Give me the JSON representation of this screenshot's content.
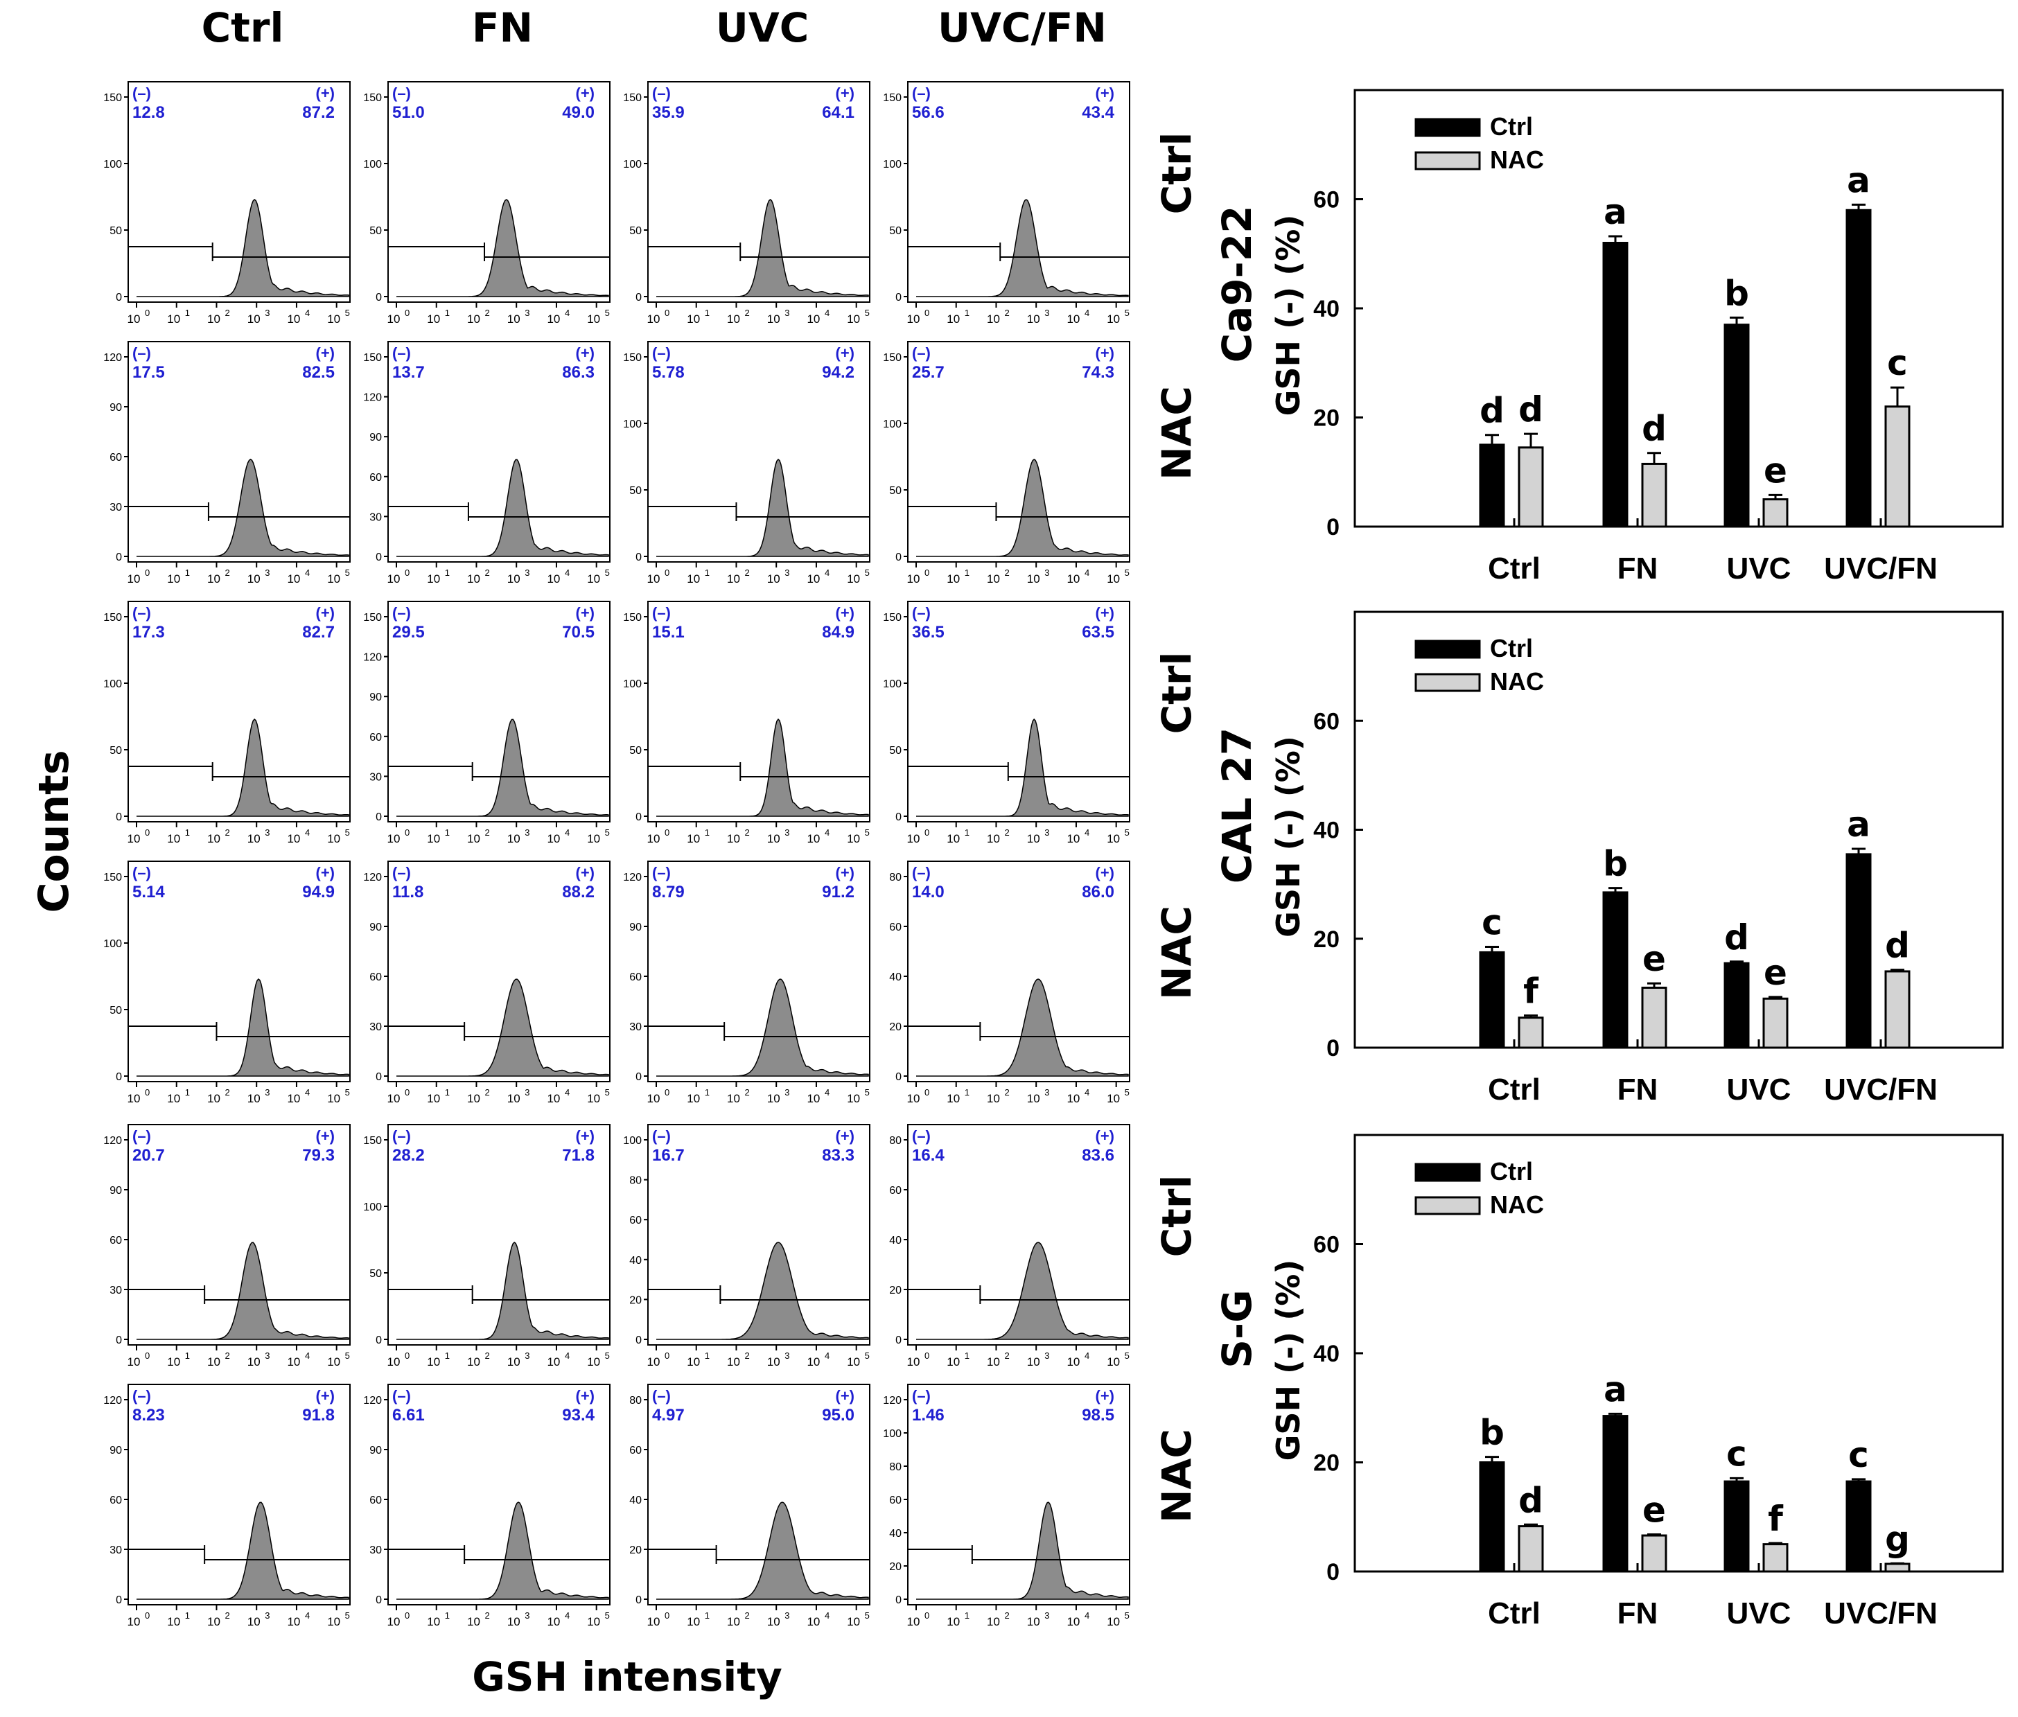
{
  "figure": {
    "column_headers": [
      "Ctrl",
      "FN",
      "UVC",
      "UVC/FN"
    ],
    "row_labels": [
      "Ctrl",
      "NAC",
      "Ctrl",
      "NAC",
      "Ctrl",
      "NAC"
    ],
    "y_axis_label": "Counts",
    "x_axis_label": "GSH intensity",
    "gate_labels": {
      "negative": "(–)",
      "positive": "(+)"
    },
    "x_tick_labels": [
      "10",
      "0",
      "10",
      "1",
      "10",
      "2",
      "10",
      "3",
      "10",
      "4",
      "10",
      "5"
    ],
    "y_ticks_sets": {
      "A": [
        "0",
        "50",
        "100",
        "150"
      ],
      "B": [
        "0",
        "30",
        "60",
        "90",
        "120"
      ],
      "C": [
        "0",
        "30",
        "60",
        "90",
        "120",
        "150"
      ],
      "D": [
        "0",
        "20",
        "40",
        "60",
        "80",
        "100"
      ],
      "E": [
        "0",
        "20",
        "40",
        "60",
        "80"
      ],
      "F": [
        "0",
        "20",
        "40",
        "60",
        "80",
        "100",
        "120"
      ]
    },
    "colors": {
      "fill": "#8c8c8c",
      "gate_text": "#1f1fd1",
      "ctrl_bar": "#000000",
      "nac_bar": "#d3d3d3"
    }
  },
  "histograms": [
    [
      {
        "neg": "12.8",
        "pos": "87.2",
        "y": "A",
        "peak": 2.95,
        "w": 0.22,
        "gate": 1.9
      },
      {
        "neg": "51.0",
        "pos": "49.0",
        "y": "A",
        "peak": 2.75,
        "w": 0.24,
        "gate": 2.2
      },
      {
        "neg": "35.9",
        "pos": "64.1",
        "y": "A",
        "peak": 2.85,
        "w": 0.22,
        "gate": 2.1
      },
      {
        "neg": "56.6",
        "pos": "43.4",
        "y": "A",
        "peak": 2.75,
        "w": 0.24,
        "gate": 2.1
      }
    ],
    [
      {
        "neg": "17.5",
        "pos": "82.5",
        "y": "B",
        "peak": 2.85,
        "w": 0.25,
        "gate": 1.8
      },
      {
        "neg": "13.7",
        "pos": "86.3",
        "y": "C",
        "peak": 3.0,
        "w": 0.22,
        "gate": 1.8
      },
      {
        "neg": "5.78",
        "pos": "94.2",
        "y": "A",
        "peak": 3.05,
        "w": 0.2,
        "gate": 2.0
      },
      {
        "neg": "25.7",
        "pos": "74.3",
        "y": "A",
        "peak": 2.95,
        "w": 0.24,
        "gate": 2.0
      }
    ],
    [
      {
        "neg": "17.3",
        "pos": "82.7",
        "y": "A",
        "peak": 2.95,
        "w": 0.2,
        "gate": 1.9
      },
      {
        "neg": "29.5",
        "pos": "70.5",
        "y": "C",
        "peak": 2.9,
        "w": 0.22,
        "gate": 1.9
      },
      {
        "neg": "15.1",
        "pos": "84.9",
        "y": "A",
        "peak": 3.05,
        "w": 0.18,
        "gate": 2.1
      },
      {
        "neg": "36.5",
        "pos": "63.5",
        "y": "A",
        "peak": 2.95,
        "w": 0.18,
        "gate": 2.3
      }
    ],
    [
      {
        "neg": "5.14",
        "pos": "94.9",
        "y": "A",
        "peak": 3.05,
        "w": 0.2,
        "gate": 2.0
      },
      {
        "neg": "11.8",
        "pos": "88.2",
        "y": "B",
        "peak": 3.0,
        "w": 0.3,
        "gate": 1.7
      },
      {
        "neg": "8.79",
        "pos": "91.2",
        "y": "B",
        "peak": 3.1,
        "w": 0.3,
        "gate": 1.7
      },
      {
        "neg": "14.0",
        "pos": "86.0",
        "y": "E",
        "peak": 3.05,
        "w": 0.32,
        "gate": 1.6
      }
    ],
    [
      {
        "neg": "20.7",
        "pos": "79.3",
        "y": "B",
        "peak": 2.9,
        "w": 0.26,
        "gate": 1.7
      },
      {
        "neg": "28.2",
        "pos": "71.8",
        "y": "A",
        "peak": 2.95,
        "w": 0.22,
        "gate": 1.9
      },
      {
        "neg": "16.7",
        "pos": "83.3",
        "y": "D",
        "peak": 3.05,
        "w": 0.35,
        "gate": 1.6
      },
      {
        "neg": "16.4",
        "pos": "83.6",
        "y": "E",
        "peak": 3.05,
        "w": 0.34,
        "gate": 1.6
      }
    ],
    [
      {
        "neg": "8.23",
        "pos": "91.8",
        "y": "B",
        "peak": 3.1,
        "w": 0.25,
        "gate": 1.7
      },
      {
        "neg": "6.61",
        "pos": "93.4",
        "y": "B",
        "peak": 3.05,
        "w": 0.25,
        "gate": 1.7
      },
      {
        "neg": "4.97",
        "pos": "95.0",
        "y": "E",
        "peak": 3.15,
        "w": 0.32,
        "gate": 1.5
      },
      {
        "neg": "1.46",
        "pos": "98.5",
        "y": "F",
        "peak": 3.3,
        "w": 0.22,
        "gate": 1.4
      }
    ]
  ],
  "chart_data": [
    {
      "type": "bar",
      "title": "Ca9-22",
      "ylabel": "GSH (-) (%)",
      "xlabel": "",
      "categories": [
        "Ctrl",
        "FN",
        "UVC",
        "UVC/FN"
      ],
      "ylim": [
        0,
        80
      ],
      "yticks": [
        0,
        20,
        40,
        60
      ],
      "series": [
        {
          "name": "Ctrl",
          "values": [
            15,
            52,
            37,
            58
          ],
          "errors": [
            1.8,
            1.2,
            1.3,
            1.0
          ],
          "letters": [
            "d",
            "a",
            "b",
            "a"
          ]
        },
        {
          "name": "NAC",
          "values": [
            14.5,
            11.5,
            5,
            22
          ],
          "errors": [
            2.5,
            2.0,
            0.8,
            3.5
          ],
          "letters": [
            "d",
            "d",
            "e",
            "c"
          ]
        }
      ]
    },
    {
      "type": "bar",
      "title": "CAL 27",
      "ylabel": "GSH (-) (%)",
      "xlabel": "",
      "categories": [
        "Ctrl",
        "FN",
        "UVC",
        "UVC/FN"
      ],
      "ylim": [
        0,
        80
      ],
      "yticks": [
        0,
        20,
        40,
        60
      ],
      "series": [
        {
          "name": "Ctrl",
          "values": [
            17.5,
            28.5,
            15.5,
            35.5
          ],
          "errors": [
            1.0,
            0.8,
            0.3,
            1.0
          ],
          "letters": [
            "c",
            "b",
            "d",
            "a"
          ]
        },
        {
          "name": "NAC",
          "values": [
            5.5,
            11,
            9,
            14
          ],
          "errors": [
            0.4,
            0.8,
            0.3,
            0.3
          ],
          "letters": [
            "f",
            "e",
            "e",
            "d"
          ]
        }
      ]
    },
    {
      "type": "bar",
      "title": "S-G",
      "ylabel": "GSH (-) (%)",
      "xlabel": "",
      "categories": [
        "Ctrl",
        "FN",
        "UVC",
        "UVC/FN"
      ],
      "ylim": [
        0,
        80
      ],
      "yticks": [
        0,
        20,
        40,
        60
      ],
      "series": [
        {
          "name": "Ctrl",
          "values": [
            20,
            28.5,
            16.5,
            16.5
          ],
          "errors": [
            1.0,
            0.4,
            0.6,
            0.4
          ],
          "letters": [
            "b",
            "a",
            "c",
            "c"
          ]
        },
        {
          "name": "NAC",
          "values": [
            8.3,
            6.6,
            5,
            1.4
          ],
          "errors": [
            0.3,
            0.2,
            0.2,
            0.1
          ],
          "letters": [
            "d",
            "e",
            "f",
            "g"
          ]
        }
      ]
    }
  ]
}
